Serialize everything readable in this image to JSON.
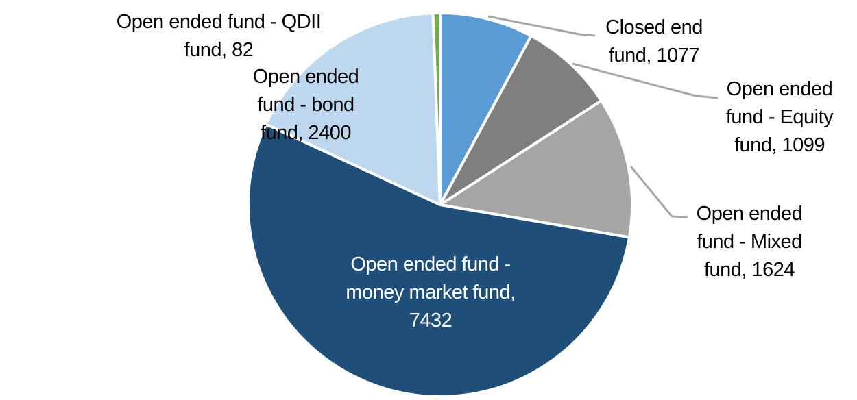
{
  "chart_data": {
    "type": "pie",
    "title": "",
    "legend_position": "none",
    "start_angle_deg": 0,
    "direction": "clockwise",
    "background_color": "#FFFFFF",
    "default_label_color": "#000000",
    "leader_line_color": "#A6A6A6",
    "categories": [
      "Closed end fund",
      "Open ended fund - Equity fund",
      "Open ended fund - Mixed fund",
      "Open ended fund - money market fund",
      "Open ended fund - bond fund",
      "Open ended fund - QDII fund"
    ],
    "values": [
      1077,
      1099,
      1624,
      7432,
      2400,
      82
    ],
    "segments": [
      {
        "name": "Closed end fund",
        "value": 1077,
        "color": "#5B9BD5",
        "label_color": "#000000",
        "label_lines": [
          "Closed end",
          "fund, 1077"
        ]
      },
      {
        "name": "Open ended fund - Equity fund",
        "value": 1099,
        "color": "#7F7F7F",
        "label_color": "#000000",
        "label_lines": [
          "Open ended",
          "fund - Equity",
          "fund, 1099"
        ]
      },
      {
        "name": "Open ended fund - Mixed fund",
        "value": 1624,
        "color": "#A5A5A5",
        "label_color": "#000000",
        "label_lines": [
          "Open ended",
          "fund - Mixed",
          "fund, 1624"
        ]
      },
      {
        "name": "Open ended fund - money market fund",
        "value": 7432,
        "color": "#1F4E79",
        "label_color": "#FFFFFF",
        "label_lines": [
          "Open ended fund -",
          "money market fund,",
          "7432"
        ]
      },
      {
        "name": "Open ended fund - bond fund",
        "value": 2400,
        "color": "#BDD7EE",
        "label_color": "#000000",
        "label_lines": [
          "Open ended",
          "fund - bond",
          "fund, 2400"
        ]
      },
      {
        "name": "Open ended fund - QDII fund",
        "value": 82,
        "color": "#70AD47",
        "label_color": "#000000",
        "label_lines": [
          "Open ended fund - QDII",
          "fund, 82"
        ]
      }
    ]
  }
}
